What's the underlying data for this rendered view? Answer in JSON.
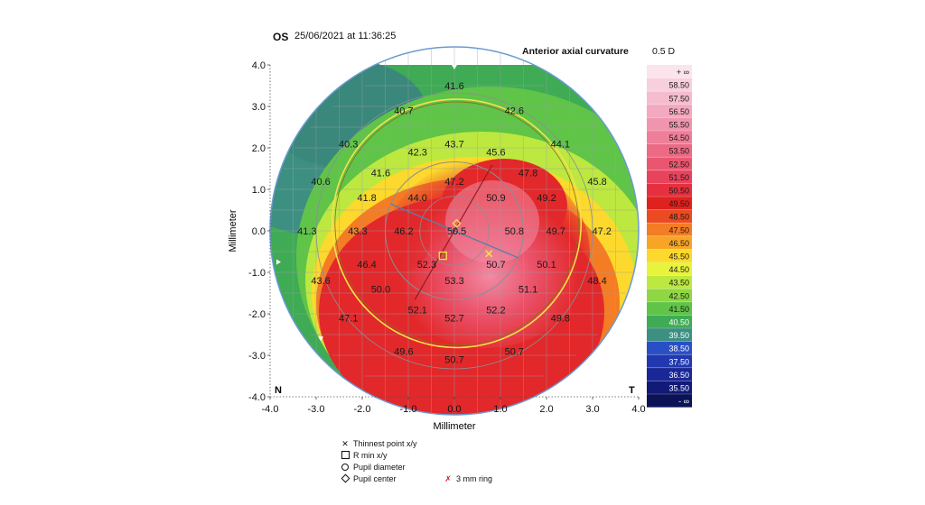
{
  "header": {
    "eye": "OS",
    "timestamp": "25/06/2021 at 11:36:25",
    "map_title": "Anterior axial curvature",
    "step": "0.5 D"
  },
  "chart_data": {
    "type": "heatmap",
    "xlabel": "Millimeter",
    "ylabel": "Millimeter",
    "xlim": [
      -4.0,
      4.0
    ],
    "ylim": [
      -4.0,
      4.0
    ],
    "x_ticks": [
      "-4.0",
      "-3.0",
      "-2.0",
      "-1.0",
      "0.0",
      "1.0",
      "2.0",
      "3.0",
      "4.0"
    ],
    "y_ticks": [
      "4.0",
      "3.0",
      "2.0",
      "1.0",
      "0.0",
      "-1.0",
      "-2.0",
      "-3.0",
      "-4.0"
    ],
    "grid": true,
    "corner_labels": {
      "left": "N",
      "right": "T"
    },
    "color_scale": {
      "labels": [
        "+ ∞",
        "58.50",
        "57.50",
        "56.50",
        "55.50",
        "54.50",
        "53.50",
        "52.50",
        "51.50",
        "50.50",
        "49.50",
        "48.50",
        "47.50",
        "46.50",
        "45.50",
        "44.50",
        "43.50",
        "42.50",
        "41.50",
        "40.50",
        "39.50",
        "38.50",
        "37.50",
        "36.50",
        "35.50",
        "- ∞"
      ],
      "colors": [
        "#fbe4ec",
        "#f8cfdd",
        "#f5bccf",
        "#f3a9c0",
        "#f095ae",
        "#ee7f99",
        "#ec6a84",
        "#ea5670",
        "#e8435c",
        "#e6303f",
        "#e0221e",
        "#ec4a22",
        "#f47c24",
        "#f8a526",
        "#fcd92c",
        "#e8f33c",
        "#bde840",
        "#8fd744",
        "#5fc447",
        "#3fab55",
        "#3d8f82",
        "#2a4fc4",
        "#2238b0",
        "#1a2796",
        "#121a78",
        "#0b1256"
      ]
    },
    "points": [
      {
        "x": 0.0,
        "y": 3.5,
        "value": "41.6"
      },
      {
        "x": -1.1,
        "y": 2.9,
        "value": "40.7"
      },
      {
        "x": 1.3,
        "y": 2.9,
        "value": "42.6"
      },
      {
        "x": -2.3,
        "y": 2.1,
        "value": "40.3"
      },
      {
        "x": -0.8,
        "y": 1.9,
        "value": "42.3"
      },
      {
        "x": 0.0,
        "y": 2.1,
        "value": "43.7"
      },
      {
        "x": 0.9,
        "y": 1.9,
        "value": "45.6"
      },
      {
        "x": 2.3,
        "y": 2.1,
        "value": "44.1"
      },
      {
        "x": -1.6,
        "y": 1.4,
        "value": "41.6"
      },
      {
        "x": 1.6,
        "y": 1.4,
        "value": "47.8"
      },
      {
        "x": -2.9,
        "y": 1.2,
        "value": "40.6"
      },
      {
        "x": 0.0,
        "y": 1.2,
        "value": "47.2"
      },
      {
        "x": 3.1,
        "y": 1.2,
        "value": "45.8"
      },
      {
        "x": -1.9,
        "y": 0.8,
        "value": "41.8"
      },
      {
        "x": -0.8,
        "y": 0.8,
        "value": "44.0"
      },
      {
        "x": 0.9,
        "y": 0.8,
        "value": "50.9"
      },
      {
        "x": 2.0,
        "y": 0.8,
        "value": "49.2"
      },
      {
        "x": -3.2,
        "y": 0.0,
        "value": "41.3"
      },
      {
        "x": -2.1,
        "y": 0.0,
        "value": "43.3"
      },
      {
        "x": -1.1,
        "y": 0.0,
        "value": "46.2"
      },
      {
        "x": 0.05,
        "y": 0.0,
        "value": "50.5"
      },
      {
        "x": 1.3,
        "y": 0.0,
        "value": "50.8"
      },
      {
        "x": 2.2,
        "y": 0.0,
        "value": "49.7"
      },
      {
        "x": 3.2,
        "y": 0.0,
        "value": "47.2"
      },
      {
        "x": -1.9,
        "y": -0.8,
        "value": "46.4"
      },
      {
        "x": -0.6,
        "y": -0.8,
        "value": "52.3"
      },
      {
        "x": 0.9,
        "y": -0.8,
        "value": "50.7"
      },
      {
        "x": 2.0,
        "y": -0.8,
        "value": "50.1"
      },
      {
        "x": -2.9,
        "y": -1.2,
        "value": "43.6"
      },
      {
        "x": 0.0,
        "y": -1.2,
        "value": "53.3"
      },
      {
        "x": 3.1,
        "y": -1.2,
        "value": "48.4"
      },
      {
        "x": -1.6,
        "y": -1.4,
        "value": "50.0"
      },
      {
        "x": 1.6,
        "y": -1.4,
        "value": "51.1"
      },
      {
        "x": -0.8,
        "y": -1.9,
        "value": "52.1"
      },
      {
        "x": 0.9,
        "y": -1.9,
        "value": "52.2"
      },
      {
        "x": -2.3,
        "y": -2.1,
        "value": "47.1"
      },
      {
        "x": 0.0,
        "y": -2.1,
        "value": "52.7"
      },
      {
        "x": 2.3,
        "y": -2.1,
        "value": "49.8"
      },
      {
        "x": -1.1,
        "y": -2.9,
        "value": "49.6"
      },
      {
        "x": 1.3,
        "y": -2.9,
        "value": "50.7"
      },
      {
        "x": 0.0,
        "y": -3.1,
        "value": "50.7"
      }
    ],
    "markers": {
      "thinnest_point": {
        "x": 0.75,
        "y": -0.55
      },
      "r_min": {
        "x": -0.25,
        "y": -0.6
      },
      "pupil_center": {
        "x": 0.05,
        "y": 0.18
      },
      "pupil_radius_mm": 2.7,
      "ring_3mm_radius_mm": 1.5
    }
  },
  "legend": {
    "thinnest": "Thinnest point x/y",
    "rmin": "R min x/y",
    "pupil_diameter": "Pupil diameter",
    "pupil_center": "Pupil center",
    "ring": "3 mm ring"
  }
}
